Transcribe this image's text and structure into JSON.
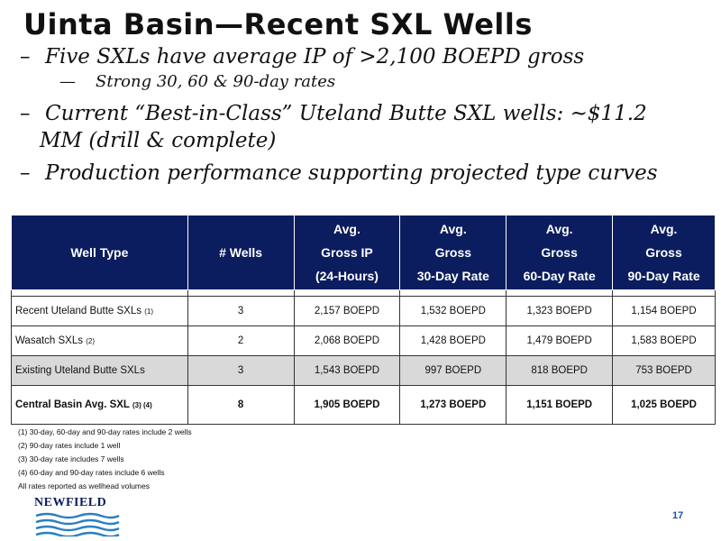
{
  "title": "Uinta Basin—Recent SXL Wells",
  "bullets": {
    "b1": "Five SXLs have average IP of >2,100 BOEPD gross",
    "b2": "Strong 30, 60 & 90-day rates",
    "b3_line1": "Current “Best-in-Class” Uteland Butte SXL wells: ~$11.2",
    "b3_line2": "MM (drill & complete)",
    "b4": "Production performance supporting projected type curves",
    "dash": "–",
    "sub_dash": "—"
  },
  "table": {
    "headers": {
      "well_type": "Well Type",
      "num_wells": "# Wells",
      "ip": [
        "Avg.",
        "Gross IP",
        "(24-Hours)"
      ],
      "d30": [
        "Avg.",
        "Gross",
        "30-Day Rate"
      ],
      "d60": [
        "Avg.",
        "Gross",
        "60-Day Rate"
      ],
      "d90": [
        "Avg.",
        "Gross",
        "90-Day Rate"
      ]
    },
    "rows": [
      {
        "type": "Recent Uteland Butte SXLs",
        "note": "(1)",
        "wells": "3",
        "ip": "2,157 BOEPD",
        "d30": "1,532 BOEPD",
        "d60": "1,323 BOEPD",
        "d90": "1,154 BOEPD"
      },
      {
        "type": "Wasatch SXLs",
        "note": "(2)",
        "wells": "2",
        "ip": "2,068 BOEPD",
        "d30": "1,428 BOEPD",
        "d60": "1,479 BOEPD",
        "d90": "1,583 BOEPD"
      },
      {
        "type": "Existing Uteland Butte SXLs",
        "note": "",
        "wells": "3",
        "ip": "1,543 BOEPD",
        "d30": "997 BOEPD",
        "d60": "818 BOEPD",
        "d90": "753 BOEPD"
      },
      {
        "type": "Central Basin Avg. SXL",
        "note": "(3) (4)",
        "wells": "8",
        "ip": "1,905 BOEPD",
        "d30": "1,273 BOEPD",
        "d60": "1,151 BOEPD",
        "d90": "1,025 BOEPD"
      }
    ]
  },
  "footnotes": [
    "(1) 30-day, 60-day and 90-day rates include 2 wells",
    "(2) 90-day rates include 1 well",
    "(3) 30-day rate includes 7 wells",
    "(4) 60-day and 90-day rates include 6 wells",
    "All rates reported as wellhead volumes"
  ],
  "logo": {
    "text": "NEWFIELD"
  },
  "page_number": "17",
  "colors": {
    "header_bg": "#0b1d5e",
    "shade_row": "#d9d9d9",
    "page_num": "#1e4fa8"
  }
}
